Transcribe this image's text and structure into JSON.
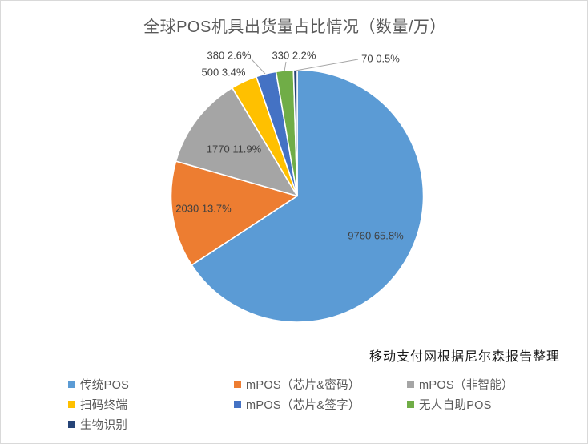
{
  "chart_data": {
    "type": "pie",
    "title": "全球POS机具出货量占比情况（数量/万）",
    "source_note": "移动支付网根据尼尔森报告整理",
    "legend_position": "bottom",
    "unit": "万",
    "categories": [
      "传统POS",
      "mPOS（芯片&密码）",
      "mPOS（非智能）",
      "扫码终端",
      "mPOS（芯片&签字）",
      "无人自助POS",
      "生物识别"
    ],
    "values": [
      9760,
      2030,
      1770,
      500,
      380,
      330,
      70
    ],
    "percents": [
      "65.8%",
      "13.7%",
      "11.9%",
      "3.4%",
      "2.6%",
      "2.2%",
      "0.5%"
    ],
    "colors": [
      "#5B9BD5",
      "#ED7D31",
      "#A5A5A5",
      "#FFC000",
      "#4472C4",
      "#70AD47",
      "#264478"
    ],
    "label_format": "value percent"
  }
}
